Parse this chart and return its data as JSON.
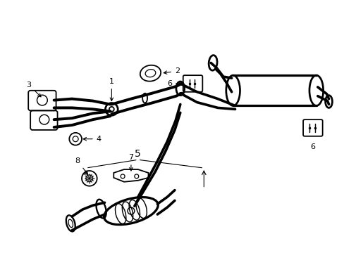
{
  "background_color": "#ffffff",
  "line_color": "#000000",
  "figsize": [
    4.89,
    3.6
  ],
  "dpi": 100,
  "lw": 1.3
}
